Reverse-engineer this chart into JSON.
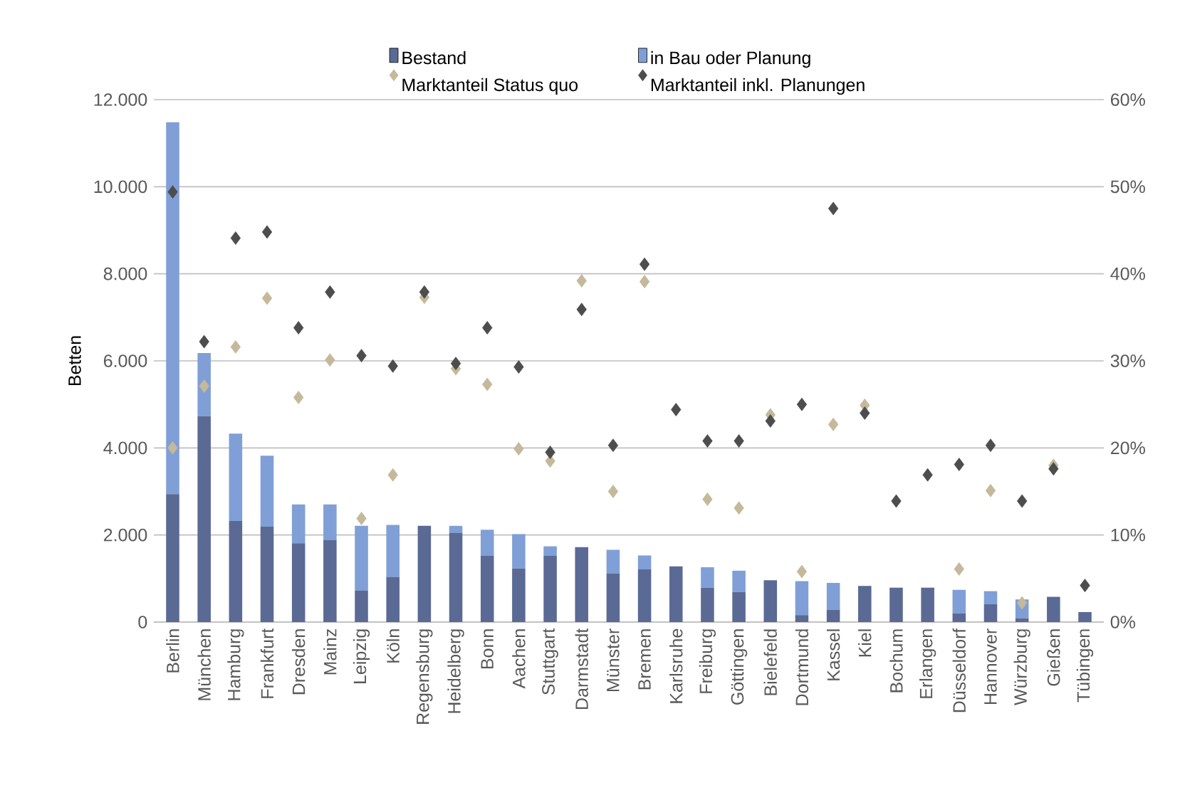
{
  "chart_data": {
    "type": "bar",
    "stacked": true,
    "ylabel": "Betten",
    "grid": "y",
    "legend": "top",
    "marker": "diamond",
    "categories": [
      "Berlin",
      "München",
      "Hamburg",
      "Frankfurt",
      "Dresden",
      "Mainz",
      "Leipzig",
      "Köln",
      "Regensburg",
      "Heidelberg",
      "Bonn",
      "Aachen",
      "Stuttgart",
      "Darmstadt",
      "Münster",
      "Bremen",
      "Karlsruhe",
      "Freiburg",
      "Göttingen",
      "Bielefeld",
      "Dortmund",
      "Kassel",
      "Kiel",
      "Bochum",
      "Erlangen",
      "Düsseldorf",
      "Hannover",
      "Würzburg",
      "Gießen",
      "Tübingen"
    ],
    "series": [
      {
        "name": "Bestand",
        "color": "#5a6a94",
        "values": [
          2940,
          4730,
          2320,
          2190,
          1810,
          1880,
          720,
          1040,
          2210,
          2050,
          1520,
          1230,
          1520,
          1720,
          1120,
          1210,
          1280,
          790,
          690,
          960,
          160,
          280,
          830,
          790,
          790,
          200,
          410,
          90,
          580,
          230
        ]
      },
      {
        "name": "in Bau oder Planung",
        "color": "#7f9fd6",
        "values": [
          8540,
          1450,
          2010,
          1630,
          890,
          820,
          1490,
          1190,
          0,
          160,
          600,
          790,
          220,
          0,
          540,
          320,
          0,
          470,
          490,
          0,
          780,
          620,
          0,
          0,
          0,
          540,
          300,
          430,
          0,
          0
        ]
      },
      {
        "name": "Marktanteil Status quo",
        "type": "scatter",
        "axis": "y2",
        "color": "#c4b99b",
        "values": [
          20.0,
          27.1,
          31.6,
          37.2,
          25.8,
          30.1,
          11.9,
          16.9,
          37.3,
          29.1,
          27.3,
          19.9,
          18.5,
          39.2,
          15.0,
          39.1,
          null,
          14.1,
          13.1,
          23.8,
          5.8,
          22.7,
          24.9,
          null,
          null,
          6.1,
          15.1,
          2.2,
          18.0,
          null
        ]
      },
      {
        "name": "Marktanteil inkl. Planungen",
        "type": "scatter",
        "axis": "y2",
        "color": "#4d4d4d",
        "values": [
          49.4,
          32.2,
          44.1,
          44.8,
          33.8,
          37.9,
          30.6,
          29.4,
          37.9,
          29.7,
          33.8,
          29.3,
          19.5,
          35.9,
          20.3,
          41.1,
          24.4,
          20.8,
          20.8,
          23.1,
          25.0,
          47.5,
          24.0,
          13.9,
          16.9,
          18.1,
          20.3,
          13.9,
          17.6,
          4.2
        ]
      }
    ],
    "ylim": [
      0,
      12000
    ],
    "yticks": [
      {
        "value": 0,
        "label": "0"
      },
      {
        "value": 2000,
        "label": "2.000"
      },
      {
        "value": 4000,
        "label": "4.000"
      },
      {
        "value": 6000,
        "label": "6.000"
      },
      {
        "value": 8000,
        "label": "8.000"
      },
      {
        "value": 10000,
        "label": "10.000"
      },
      {
        "value": 12000,
        "label": "12.000"
      }
    ],
    "y2lim": [
      0,
      60
    ],
    "y2ticks": [
      {
        "value": 0,
        "label": "0%"
      },
      {
        "value": 10,
        "label": "10%"
      },
      {
        "value": 20,
        "label": "20%"
      },
      {
        "value": 30,
        "label": "30%"
      },
      {
        "value": 40,
        "label": "40%"
      },
      {
        "value": 50,
        "label": "50%"
      },
      {
        "value": 60,
        "label": "60%"
      }
    ]
  }
}
